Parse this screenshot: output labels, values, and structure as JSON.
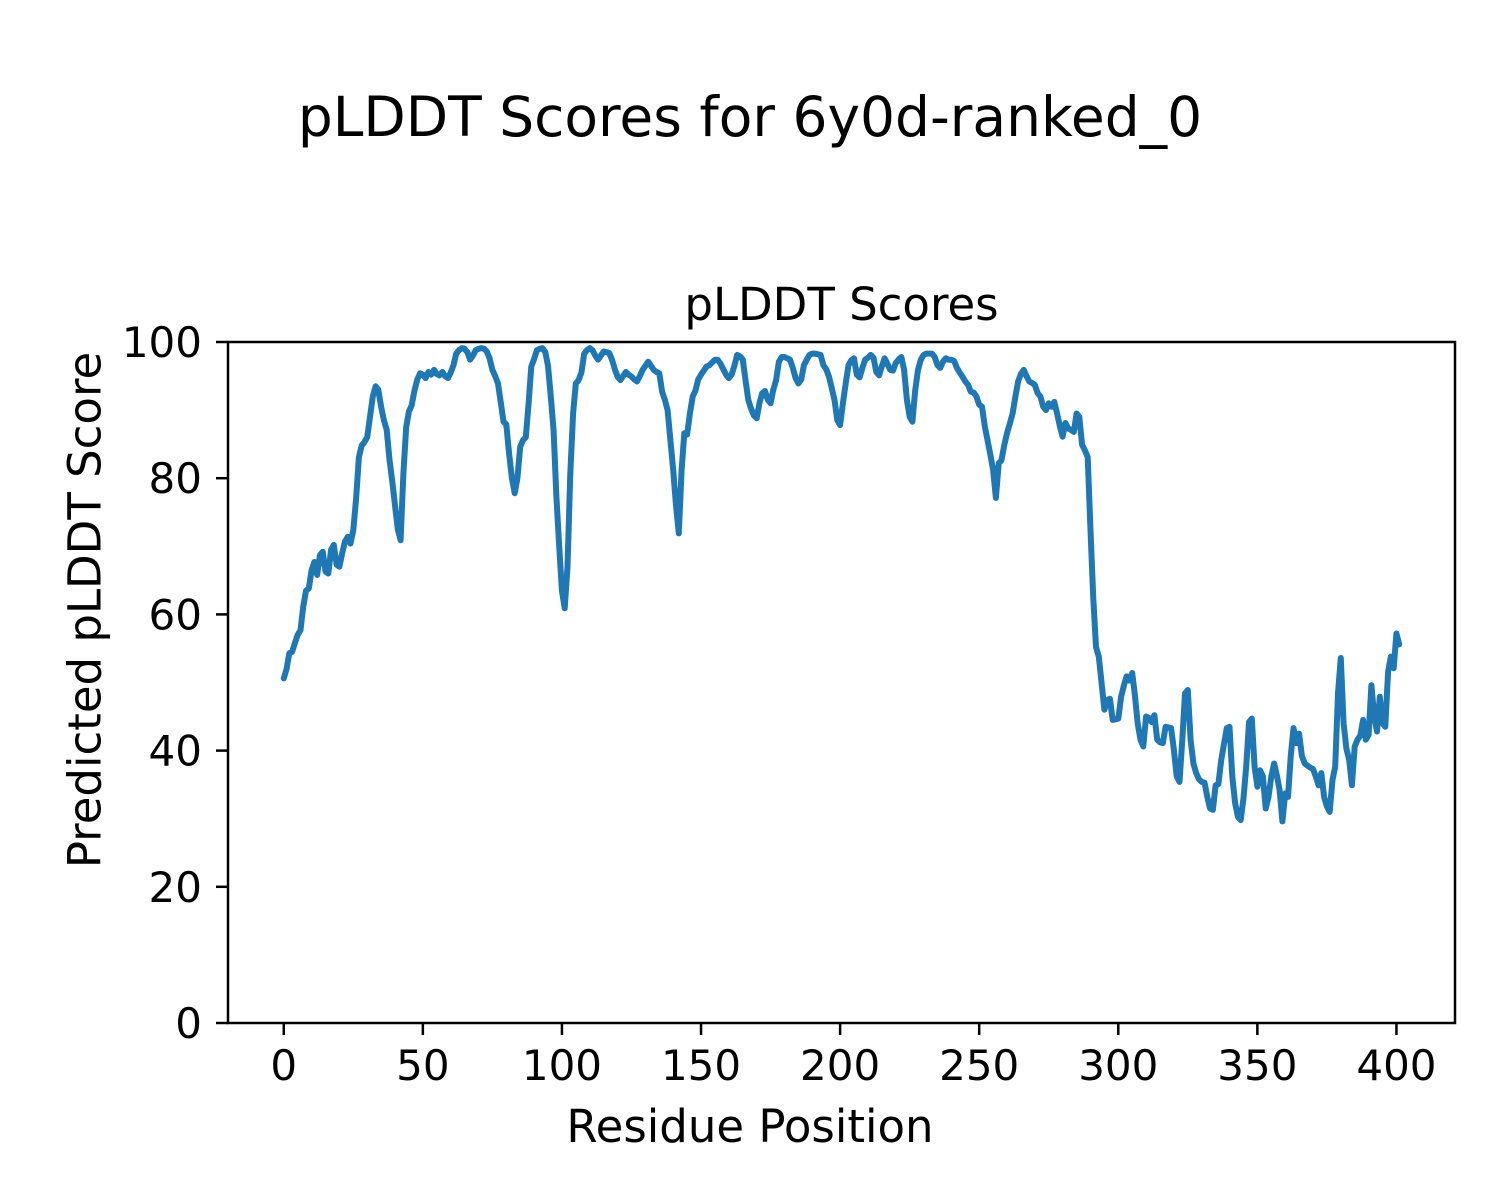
{
  "figure": {
    "suptitle": "pLDDT Scores for 6y0d-ranked_0",
    "axes_title": "pLDDT Scores",
    "xlabel": "Residue Position",
    "ylabel": "Predicted pLDDT Score"
  },
  "chart_data": {
    "type": "line",
    "title": "pLDDT Scores",
    "suptitle": "pLDDT Scores for 6y0d-ranked_0",
    "xlabel": "Residue Position",
    "ylabel": "Predicted pLDDT Score",
    "x_ticks": [
      0,
      50,
      100,
      150,
      200,
      250,
      300,
      350,
      400
    ],
    "y_ticks": [
      0,
      20,
      40,
      60,
      80,
      100
    ],
    "xlim": [
      -20.05,
      421.05
    ],
    "ylim": [
      0,
      100
    ],
    "grid": false,
    "legend": null,
    "line_color": "#1f77b4",
    "axis_color": "#000000",
    "background": "#ffffff",
    "series": [
      {
        "name": "pLDDT",
        "x_start": 0,
        "x_step": 1,
        "values": [
          50.6,
          52.0,
          54.3,
          54.5,
          55.8,
          57.0,
          57.7,
          61.1,
          63.5,
          63.8,
          66.5,
          67.7,
          65.8,
          68.7,
          69.2,
          66.3,
          66.0,
          69.5,
          70.2,
          67.3,
          67.0,
          69.0,
          70.7,
          71.4,
          70.4,
          72.4,
          77.0,
          83.1,
          84.8,
          85.3,
          86.0,
          89.0,
          92.0,
          93.5,
          93.0,
          90.5,
          88.5,
          87.1,
          82.7,
          79.5,
          76.0,
          72.5,
          70.9,
          80.7,
          87.5,
          89.8,
          90.7,
          92.9,
          94.5,
          95.4,
          95.2,
          94.7,
          95.6,
          95.2,
          95.9,
          95.3,
          95.1,
          95.6,
          95.0,
          94.7,
          95.5,
          96.6,
          98.3,
          98.8,
          99.1,
          99.0,
          98.5,
          97.4,
          98.0,
          98.8,
          99.0,
          99.1,
          99.0,
          98.6,
          97.6,
          95.9,
          95.0,
          93.9,
          91.2,
          88.3,
          87.9,
          83.6,
          80.0,
          77.8,
          80.0,
          84.6,
          85.6,
          86.0,
          91.0,
          96.4,
          97.5,
          98.8,
          99.0,
          99.1,
          98.5,
          96.5,
          92.0,
          87.0,
          77.3,
          70.0,
          63.5,
          60.9,
          67.0,
          80.7,
          89.5,
          93.9,
          94.4,
          95.5,
          98.3,
          98.8,
          99.1,
          98.8,
          98.0,
          97.4,
          98.0,
          98.6,
          98.5,
          98.4,
          97.4,
          96.0,
          94.9,
          94.4,
          95.0,
          95.6,
          95.2,
          94.9,
          94.5,
          94.2,
          95.0,
          95.9,
          96.5,
          97.1,
          96.5,
          95.9,
          95.6,
          95.4,
          92.7,
          91.5,
          90.0,
          85.6,
          81.2,
          76.0,
          71.9,
          81.2,
          86.6,
          86.4,
          89.5,
          92.0,
          92.9,
          94.5,
          95.2,
          95.8,
          96.4,
          96.6,
          97.0,
          97.4,
          97.4,
          96.8,
          96.0,
          95.2,
          94.7,
          95.2,
          96.5,
          98.1,
          97.9,
          97.4,
          94.4,
          91.5,
          90.2,
          89.2,
          88.8,
          91.0,
          92.5,
          92.8,
          91.5,
          91.0,
          93.0,
          94.4,
          97.1,
          97.8,
          97.8,
          97.6,
          97.4,
          96.2,
          94.7,
          93.9,
          94.5,
          96.6,
          97.4,
          98.1,
          98.3,
          98.3,
          98.2,
          98.1,
          96.6,
          96.0,
          94.9,
          93.2,
          91.5,
          88.5,
          87.8,
          91.0,
          93.9,
          96.6,
          97.3,
          97.6,
          95.2,
          94.8,
          96.2,
          97.4,
          97.7,
          98.1,
          97.7,
          95.6,
          95.1,
          96.4,
          97.6,
          96.8,
          95.9,
          95.8,
          96.9,
          97.4,
          97.8,
          95.9,
          91.5,
          89.0,
          88.3,
          92.9,
          95.9,
          97.4,
          98.1,
          98.3,
          98.3,
          98.3,
          97.8,
          96.6,
          96.2,
          97.1,
          97.6,
          97.4,
          97.4,
          97.2,
          96.2,
          95.5,
          94.9,
          94.2,
          93.7,
          92.7,
          92.6,
          92.0,
          90.8,
          90.5,
          87.6,
          85.6,
          83.5,
          81.2,
          77.1,
          82.2,
          82.6,
          84.8,
          86.6,
          88.0,
          89.5,
          92.0,
          94.2,
          95.3,
          95.9,
          95.0,
          94.2,
          94.0,
          93.7,
          92.5,
          92.0,
          90.5,
          90.0,
          91.0,
          90.5,
          91.2,
          89.5,
          87.6,
          86.1,
          88.1,
          87.3,
          87.1,
          86.8,
          89.5,
          89.0,
          84.9,
          84.1,
          83.1,
          72.4,
          62.6,
          55.2,
          53.8,
          49.9,
          46.0,
          47.4,
          47.6,
          44.5,
          44.6,
          44.7,
          47.9,
          49.5,
          50.9,
          50.3,
          51.4,
          48.0,
          44.0,
          41.6,
          40.6,
          45.0,
          44.8,
          44.2,
          45.2,
          41.6,
          41.2,
          41.1,
          43.5,
          43.4,
          43.3,
          40.1,
          36.2,
          35.4,
          41.6,
          48.4,
          48.9,
          41.6,
          38.1,
          36.7,
          35.8,
          35.4,
          35.3,
          33.2,
          31.5,
          31.3,
          34.9,
          35.1,
          38.6,
          41.0,
          43.3,
          43.5,
          36.2,
          32.3,
          30.3,
          29.8,
          33.0,
          37.6,
          44.2,
          44.7,
          37.6,
          34.7,
          37.1,
          36.2,
          31.5,
          33.2,
          36.2,
          38.1,
          36.4,
          34.2,
          29.6,
          33.7,
          33.2,
          39.1,
          43.3,
          41.1,
          42.5,
          39.2,
          38.1,
          37.8,
          37.5,
          37.3,
          36.2,
          34.9,
          36.7,
          33.2,
          31.8,
          31.0,
          35.7,
          37.6,
          48.4,
          53.6,
          44.0,
          40.3,
          38.6,
          34.9,
          40.6,
          41.6,
          42.2,
          44.5,
          41.6,
          42.3,
          49.6,
          45.0,
          42.8,
          47.9,
          44.0,
          43.5,
          51.6,
          53.8,
          52.1,
          57.2,
          55.6
        ]
      }
    ]
  }
}
